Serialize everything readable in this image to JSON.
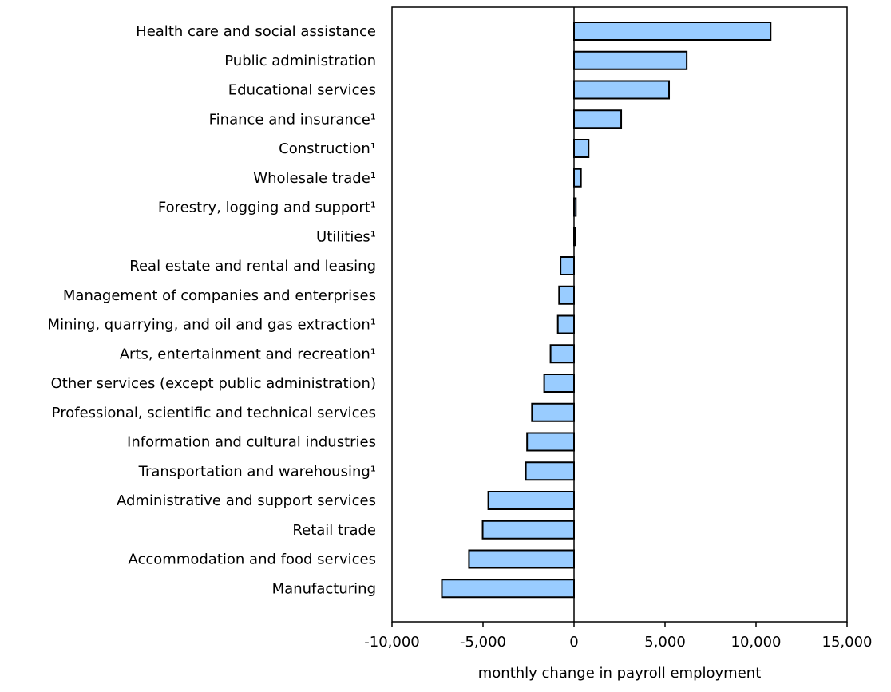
{
  "chart_data": {
    "type": "bar",
    "orientation": "horizontal",
    "categories": [
      "Health care and social assistance",
      "Public administration",
      "Educational services",
      "Finance and insurance¹",
      "Construction¹",
      "Wholesale trade¹",
      "Forestry, logging and support¹",
      "Utilities¹",
      "Real estate and rental and leasing",
      "Management of companies and enterprises",
      "Mining, quarrying, and oil and gas extraction¹",
      "Arts, entertainment and recreation¹",
      "Other services (except public administration)",
      "Professional, scientific and technical services",
      "Information and cultural industries",
      "Transportation and warehousing¹",
      "Administrative and support services",
      "Retail trade",
      "Accommodation and food services",
      "Manufacturing"
    ],
    "values": [
      10800,
      6190,
      5220,
      2590,
      800,
      380,
      100,
      30,
      -740,
      -820,
      -890,
      -1290,
      -1640,
      -2310,
      -2580,
      -2650,
      -4710,
      -5020,
      -5770,
      -7260
    ],
    "xlabel": "monthly change in payroll employment",
    "ylabel": "",
    "xlim": [
      -10000,
      15000
    ],
    "xticks": [
      -10000,
      -5000,
      0,
      5000,
      10000,
      15000
    ],
    "xtick_labels": [
      "-10,000",
      "-5,000",
      "0",
      "5,000",
      "10,000",
      "15,000"
    ],
    "grid": false,
    "bar_color": "#99ccff",
    "bar_edge_color": "#000000"
  }
}
